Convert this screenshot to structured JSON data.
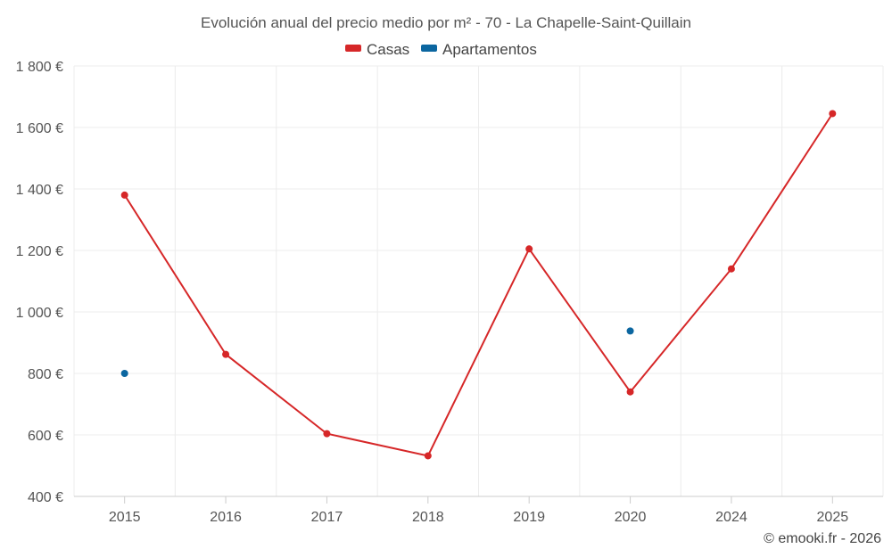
{
  "chart_data": {
    "type": "line",
    "title": "Evolución anual del precio medio por m² - 70 - La Chapelle-Saint-Quillain",
    "categories": [
      "2015",
      "2016",
      "2017",
      "2018",
      "2019",
      "2020",
      "2024",
      "2025"
    ],
    "y_tick_labels": [
      "400 €",
      "600 €",
      "800 €",
      "1 000 €",
      "1 200 €",
      "1 400 €",
      "1 600 €",
      "1 800 €"
    ],
    "y_ticks": [
      400,
      600,
      800,
      1000,
      1200,
      1400,
      1600,
      1800
    ],
    "ylim": [
      400,
      1800
    ],
    "grid": true,
    "legend_position": "top-center",
    "series": [
      {
        "name": "Casas",
        "color": "#d62728",
        "values": [
          1380,
          862,
          604,
          532,
          1205,
          740,
          1140,
          1645
        ]
      },
      {
        "name": "Apartamentos",
        "color": "#0b66a0",
        "values": [
          800,
          null,
          null,
          null,
          null,
          938,
          null,
          null
        ]
      }
    ],
    "credit": "© emooki.fr - 2026"
  }
}
